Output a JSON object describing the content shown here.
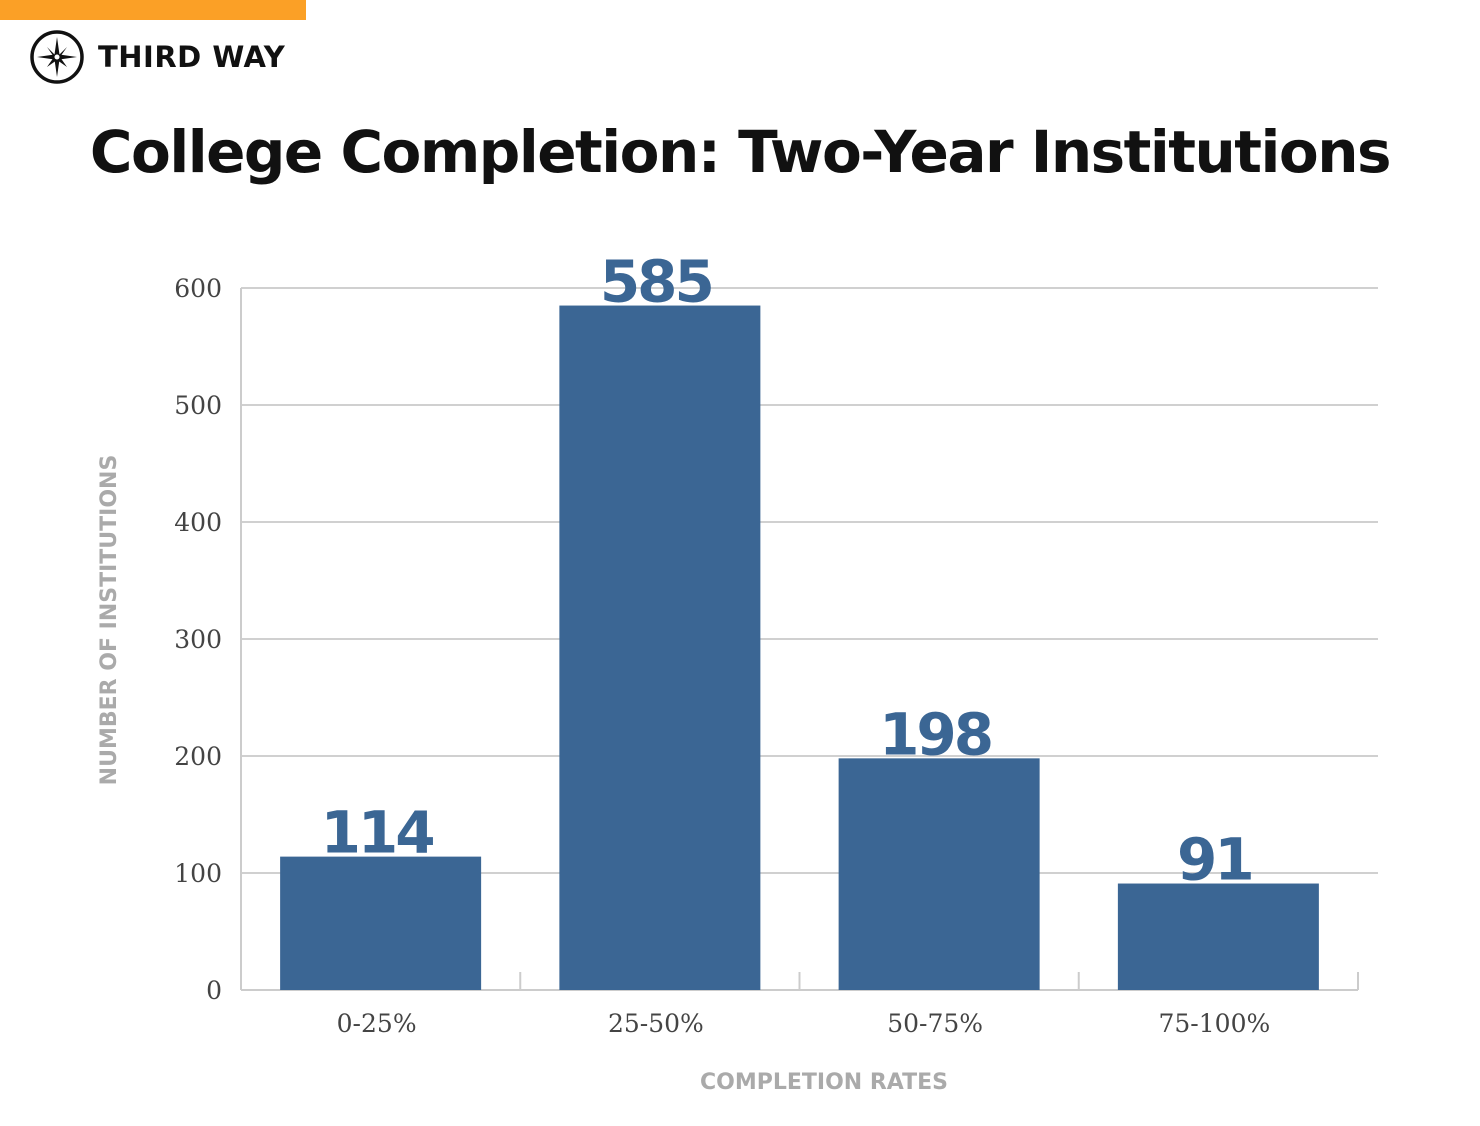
{
  "brand": {
    "name": "THIRD WAY",
    "accent_color": "#fba026",
    "icon": "compass-star-icon"
  },
  "chart_data": {
    "type": "bar",
    "title": "College Completion: Two-Year Institutions",
    "xlabel": "COMPLETION RATES",
    "ylabel": "NUMBER OF INSTITUTIONS",
    "categories": [
      "0-25%",
      "25-50%",
      "50-75%",
      "75-100%"
    ],
    "values": [
      114,
      585,
      198,
      91
    ],
    "data_labels": [
      "114",
      "585",
      "198",
      "91"
    ],
    "yticks": [
      "0",
      "100",
      "200",
      "300",
      "400",
      "500",
      "600"
    ],
    "ylim": [
      0,
      600
    ],
    "grid": true,
    "bar_color": "#3b6694"
  }
}
